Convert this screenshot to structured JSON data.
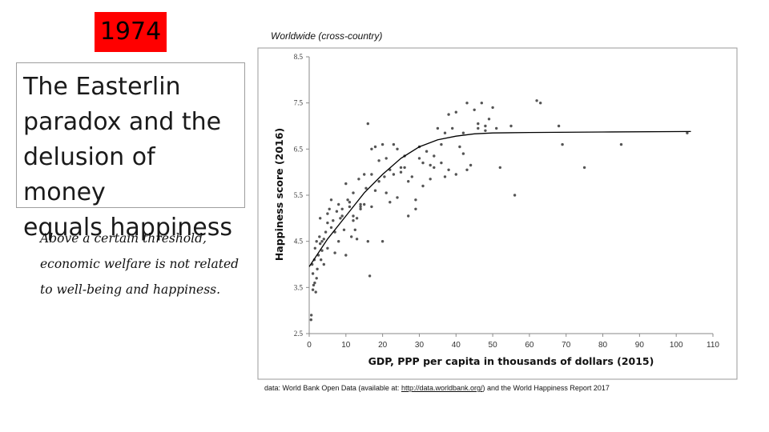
{
  "slide": {
    "year": "1974",
    "title_lines": [
      "The Easterlin",
      "paradox and the",
      "delusion of money",
      "equals happiness"
    ],
    "subtitle_lines": [
      "Above a certain threshold,",
      "economic welfare is not related",
      "to well-being and happiness."
    ],
    "chart_caption": "Worldwide (cross-country)",
    "source_prefix": "data: World Bank Open Data (available at: ",
    "source_link": "http://data.worldbank.org/",
    "source_suffix": ") and the World Happiness Report 2017"
  },
  "colors": {
    "badge": "#ff0000",
    "point": "#555555",
    "curve": "#000000"
  },
  "chart_data": {
    "type": "scatter",
    "xlabel": "GDP, PPP per capita in thousands of dollars (2015)",
    "ylabel": "Happiness score (2016)",
    "x_ticks": [
      0,
      10,
      20,
      30,
      40,
      50,
      60,
      70,
      80,
      90,
      100,
      110
    ],
    "y_ticks": [
      "2.5",
      "3.5",
      "4.5",
      "5.5",
      "6.5",
      "7.5",
      "8.5"
    ],
    "xlim": [
      0,
      110
    ],
    "ylim": [
      2.5,
      8.5
    ],
    "grid": false,
    "trend_curve": [
      [
        0,
        3.95
      ],
      [
        5,
        4.55
      ],
      [
        10,
        5.05
      ],
      [
        15,
        5.55
      ],
      [
        20,
        5.95
      ],
      [
        25,
        6.3
      ],
      [
        30,
        6.55
      ],
      [
        35,
        6.7
      ],
      [
        40,
        6.78
      ],
      [
        45,
        6.83
      ],
      [
        50,
        6.85
      ],
      [
        60,
        6.86
      ],
      [
        80,
        6.87
      ],
      [
        104,
        6.88
      ]
    ],
    "points": [
      [
        0.5,
        2.8
      ],
      [
        0.6,
        2.9
      ],
      [
        1,
        3.45
      ],
      [
        1.2,
        3.55
      ],
      [
        1.5,
        3.6
      ],
      [
        1.8,
        3.4
      ],
      [
        2,
        3.7
      ],
      [
        1,
        3.8
      ],
      [
        0.8,
        4.0
      ],
      [
        1.4,
        4.1
      ],
      [
        2.2,
        3.9
      ],
      [
        2.5,
        4.2
      ],
      [
        1.6,
        4.35
      ],
      [
        3,
        4.45
      ],
      [
        2.8,
        4.6
      ],
      [
        3.5,
        4.3
      ],
      [
        3.2,
        4.1
      ],
      [
        4,
        4.55
      ],
      [
        4.5,
        4.7
      ],
      [
        5,
        4.9
      ],
      [
        5.5,
        5.2
      ],
      [
        6,
        5.4
      ],
      [
        6,
        4.8
      ],
      [
        7,
        4.25
      ],
      [
        8,
        4.5
      ],
      [
        8.5,
        5.0
      ],
      [
        9,
        5.2
      ],
      [
        9.5,
        4.75
      ],
      [
        10,
        4.2
      ],
      [
        10.5,
        5.4
      ],
      [
        11,
        5.25
      ],
      [
        11.5,
        4.6
      ],
      [
        12,
        4.95
      ],
      [
        12.5,
        4.75
      ],
      [
        13,
        4.55
      ],
      [
        13.5,
        5.85
      ],
      [
        14,
        5.2
      ],
      [
        15,
        5.3
      ],
      [
        15.5,
        5.65
      ],
      [
        16,
        4.5
      ],
      [
        16.5,
        3.75
      ],
      [
        17,
        5.95
      ],
      [
        18,
        5.6
      ],
      [
        19,
        5.8
      ],
      [
        20,
        4.5
      ],
      [
        20.5,
        5.9
      ],
      [
        21,
        6.3
      ],
      [
        22,
        5.35
      ],
      [
        23,
        5.95
      ],
      [
        24,
        6.5
      ],
      [
        25,
        6.0
      ],
      [
        26,
        6.1
      ],
      [
        27,
        5.8
      ],
      [
        28,
        5.9
      ],
      [
        29,
        5.4
      ],
      [
        30,
        6.3
      ],
      [
        31,
        5.7
      ],
      [
        32,
        6.45
      ],
      [
        33,
        5.85
      ],
      [
        34,
        6.1
      ],
      [
        35,
        6.95
      ],
      [
        36,
        6.6
      ],
      [
        37,
        6.85
      ],
      [
        38,
        7.25
      ],
      [
        39,
        6.95
      ],
      [
        40,
        7.3
      ],
      [
        41,
        6.55
      ],
      [
        42,
        6.4
      ],
      [
        43,
        7.5
      ],
      [
        45,
        7.35
      ],
      [
        46,
        6.95
      ],
      [
        47,
        7.5
      ],
      [
        48,
        6.9
      ],
      [
        49,
        7.15
      ],
      [
        50,
        7.4
      ],
      [
        51,
        6.95
      ],
      [
        55,
        7.0
      ],
      [
        56,
        5.5
      ],
      [
        62,
        7.55
      ],
      [
        68,
        7.0
      ],
      [
        69,
        6.6
      ],
      [
        75,
        6.1
      ],
      [
        85,
        6.6
      ],
      [
        103,
        6.85
      ],
      [
        2,
        4.5
      ],
      [
        4,
        4.0
      ],
      [
        6.5,
        4.95
      ],
      [
        7.5,
        5.15
      ],
      [
        10,
        5.75
      ],
      [
        12,
        5.55
      ],
      [
        14,
        5.25
      ],
      [
        16,
        7.05
      ],
      [
        18,
        6.55
      ],
      [
        21,
        5.55
      ],
      [
        24,
        5.45
      ],
      [
        27,
        5.05
      ],
      [
        29,
        5.2
      ],
      [
        33,
        6.15
      ],
      [
        36,
        6.2
      ],
      [
        40,
        5.95
      ],
      [
        44,
        6.15
      ],
      [
        46,
        7.05
      ],
      [
        48,
        7.0
      ],
      [
        52,
        6.1
      ],
      [
        63,
        7.5
      ],
      [
        3.5,
        4.5
      ],
      [
        5,
        4.35
      ],
      [
        7,
        4.7
      ],
      [
        9,
        5.05
      ],
      [
        11,
        5.35
      ],
      [
        13,
        5.0
      ],
      [
        15,
        5.95
      ],
      [
        17,
        6.5
      ],
      [
        19,
        6.25
      ],
      [
        22,
        6.05
      ],
      [
        25,
        6.1
      ],
      [
        30,
        6.55
      ],
      [
        34,
        6.35
      ],
      [
        38,
        6.05
      ],
      [
        42,
        6.85
      ],
      [
        3,
        5.0
      ],
      [
        5,
        5.1
      ],
      [
        8,
        5.3
      ],
      [
        12,
        5.05
      ],
      [
        14,
        5.3
      ],
      [
        17,
        5.25
      ],
      [
        20,
        6.6
      ],
      [
        23,
        6.6
      ],
      [
        26,
        6.35
      ],
      [
        31,
        6.2
      ],
      [
        37,
        5.9
      ],
      [
        43,
        6.05
      ]
    ]
  }
}
